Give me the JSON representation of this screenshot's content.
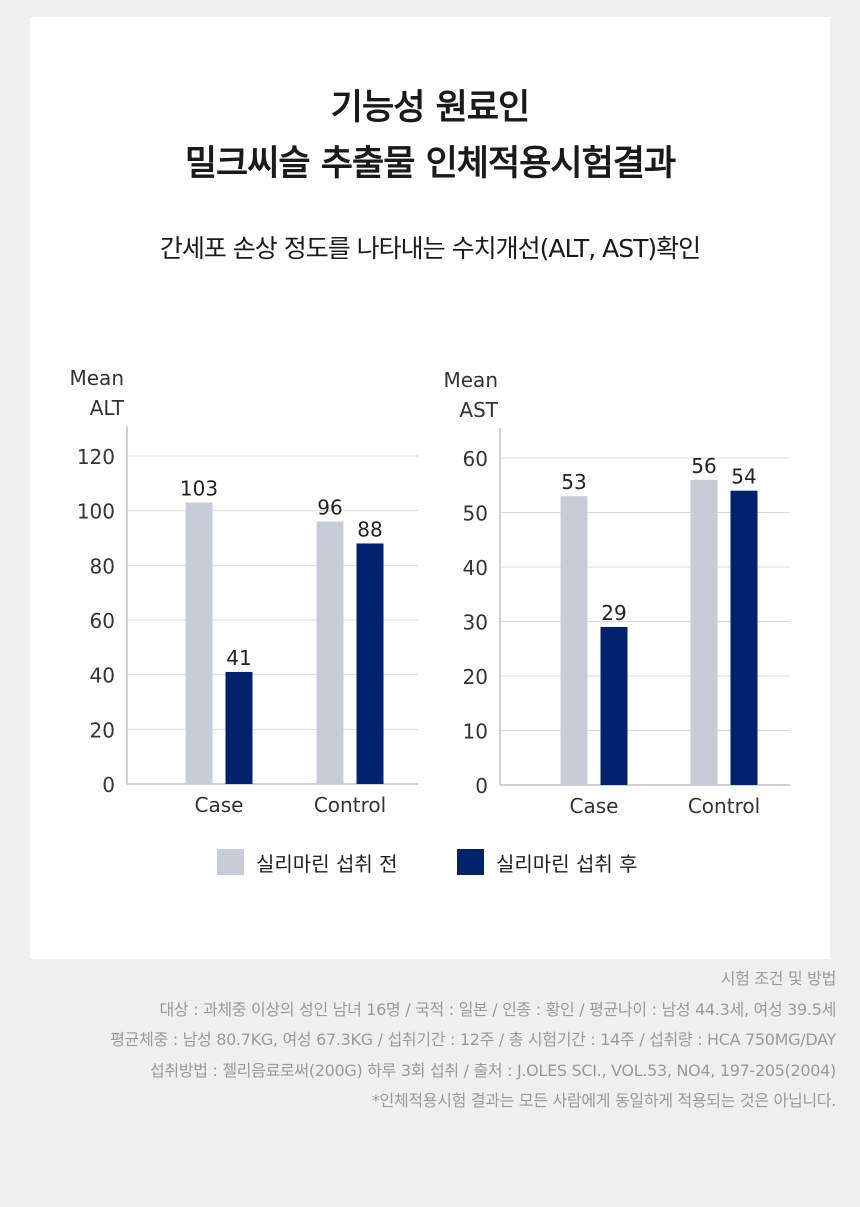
{
  "title_line1": "기능성 원료인",
  "title_line2": "밀크씨슬 추출물 인체적용시험결과",
  "subtitle": "간세포 손상 정도를 나타내는 수치개선(ALT, AST)확인",
  "colors": {
    "before": "#c7ccd6",
    "after": "#03226e",
    "grid": "#dcdcdc",
    "axis_text": "#333333"
  },
  "chart_data": [
    {
      "type": "bar",
      "ylabel_line1": "Mean",
      "ylabel_line2": "ALT",
      "categories": [
        "Case",
        "Control"
      ],
      "ylim": [
        0,
        120
      ],
      "yticks": [
        0,
        20,
        40,
        60,
        80,
        100,
        120
      ],
      "series": [
        {
          "name": "실리마린 섭취 전",
          "values": [
            103,
            96
          ]
        },
        {
          "name": "실리마린 섭취 후",
          "values": [
            41,
            88
          ]
        }
      ]
    },
    {
      "type": "bar",
      "ylabel_line1": "Mean",
      "ylabel_line2": "AST",
      "categories": [
        "Case",
        "Control"
      ],
      "ylim": [
        0,
        60
      ],
      "yticks": [
        0,
        10,
        20,
        30,
        40,
        50,
        60
      ],
      "series": [
        {
          "name": "실리마린 섭취 전",
          "values": [
            53,
            56
          ]
        },
        {
          "name": "실리마린 섭취 후",
          "values": [
            29,
            54
          ]
        }
      ]
    }
  ],
  "legend": {
    "before": "실리마린 섭취 전",
    "after": "실리마린 섭취 후"
  },
  "notes": [
    "시험 조건 및 방법",
    "대상 : 과체중 이상의 성인 남녀 16명 / 국적 : 일본 / 인종 : 황인 / 평균나이 : 남성 44.3세, 여성 39.5세",
    "평균체중 : 남성 80.7KG, 여성 67.3KG / 섭취기간 : 12주 / 총 시험기간 : 14주 / 섭취량 : HCA 750MG/DAY",
    "섭취방법 : 젤리음료로써(200G) 하루 3회 섭취 / 출처 : J.OLES SCI., VOL.53, NO4, 197-205(2004)",
    "*인체적용시험 결과는 모든 사람에게 동일하게 적용되는 것은 아닙니다."
  ]
}
